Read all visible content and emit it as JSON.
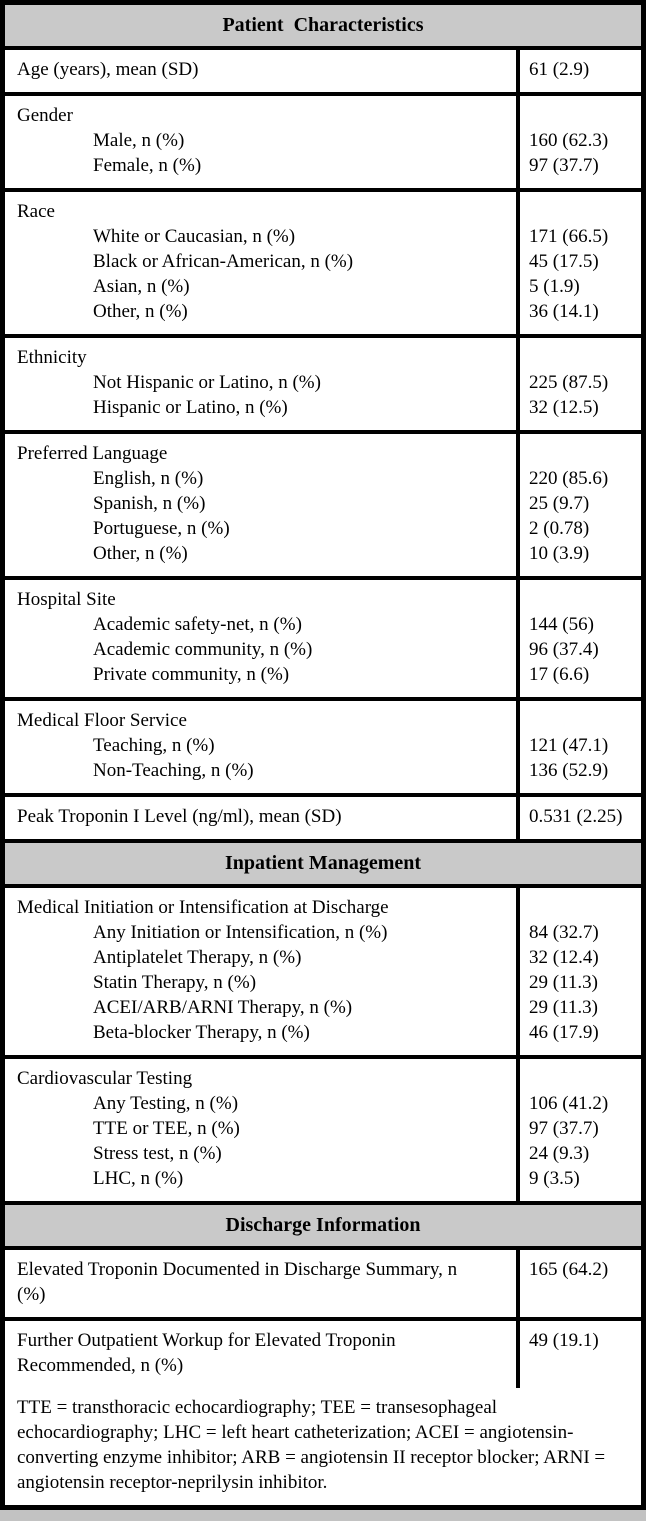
{
  "table": {
    "colors": {
      "header_bg": "#c9c9c9",
      "border": "#000000",
      "page_bg": "#c2c2c2"
    },
    "sections": [
      {
        "header": "Patient  Characteristics",
        "rows": [
          {
            "label": "Age (years), mean (SD)",
            "value": "61 (2.9)"
          },
          {
            "label": "Gender",
            "items": [
              {
                "label": "Male, n (%)",
                "value": "160 (62.3)"
              },
              {
                "label": "Female, n (%)",
                "value": "97 (37.7)"
              }
            ]
          },
          {
            "label": "Race",
            "items": [
              {
                "label": "White or Caucasian, n (%)",
                "value": "171 (66.5)"
              },
              {
                "label": "Black or African-American, n (%)",
                "value": "45 (17.5)"
              },
              {
                "label": "Asian, n (%)",
                "value": "5 (1.9)"
              },
              {
                "label": "Other, n (%)",
                "value": "36 (14.1)"
              }
            ]
          },
          {
            "label": "Ethnicity",
            "items": [
              {
                "label": "Not Hispanic or Latino, n (%)",
                "value": "225 (87.5)"
              },
              {
                "label": "Hispanic or Latino, n (%)",
                "value": "32 (12.5)"
              }
            ]
          },
          {
            "label": "Preferred Language",
            "items": [
              {
                "label": "English, n (%)",
                "value": "220 (85.6)"
              },
              {
                "label": "Spanish, n (%)",
                "value": "25 (9.7)"
              },
              {
                "label": "Portuguese, n (%)",
                "value": "2 (0.78)"
              },
              {
                "label": "Other, n (%)",
                "value": "10 (3.9)"
              }
            ]
          },
          {
            "label": "Hospital Site",
            "items": [
              {
                "label": "Academic safety-net, n (%)",
                "value": "144 (56)"
              },
              {
                "label": "Academic community, n (%)",
                "value": "96 (37.4)"
              },
              {
                "label": "Private community, n (%)",
                "value": "17 (6.6)"
              }
            ]
          },
          {
            "label": "Medical Floor Service",
            "items": [
              {
                "label": "Teaching, n (%)",
                "value": "121 (47.1)"
              },
              {
                "label": "Non-Teaching, n (%)",
                "value": "136 (52.9)"
              }
            ]
          },
          {
            "label": "Peak Troponin I Level (ng/ml), mean (SD)",
            "value": "0.531 (2.25)"
          }
        ]
      },
      {
        "header": "Inpatient Management",
        "rows": [
          {
            "label": "Medical Initiation or Intensification at Discharge",
            "items": [
              {
                "label": "Any Initiation or Intensification, n (%)",
                "value": "84 (32.7)"
              },
              {
                "label": "Antiplatelet Therapy, n (%)",
                "value": "32 (12.4)"
              },
              {
                "label": "Statin Therapy, n (%)",
                "value": "29 (11.3)"
              },
              {
                "label": "ACEI/ARB/ARNI Therapy, n (%)",
                "value": "29 (11.3)"
              },
              {
                "label": "Beta-blocker Therapy, n (%)",
                "value": "46 (17.9)"
              }
            ]
          },
          {
            "label": "Cardiovascular Testing",
            "items": [
              {
                "label": "Any Testing, n (%)",
                "value": "106 (41.2)"
              },
              {
                "label": "TTE or TEE, n (%)",
                "value": "97 (37.7)"
              },
              {
                "label": "Stress test, n (%)",
                "value": "24 (9.3)"
              },
              {
                "label": "LHC, n (%)",
                "value": "9 (3.5)"
              }
            ]
          }
        ]
      },
      {
        "header": "Discharge Information",
        "rows": [
          {
            "label": "Elevated Troponin Documented in Discharge Summary, n (%)",
            "value": "165 (64.2)"
          },
          {
            "label": "Further Outpatient Workup for Elevated Troponin Recommended, n (%)",
            "value": "49 (19.1)"
          }
        ]
      }
    ],
    "footnote": "TTE = transthoracic echocardiography; TEE = transesophageal echocardiography; LHC = left heart catheterization; ACEI = angiotensin-converting enzyme inhibitor; ARB = angiotensin II receptor blocker; ARNI = angiotensin receptor-neprilysin inhibitor."
  }
}
